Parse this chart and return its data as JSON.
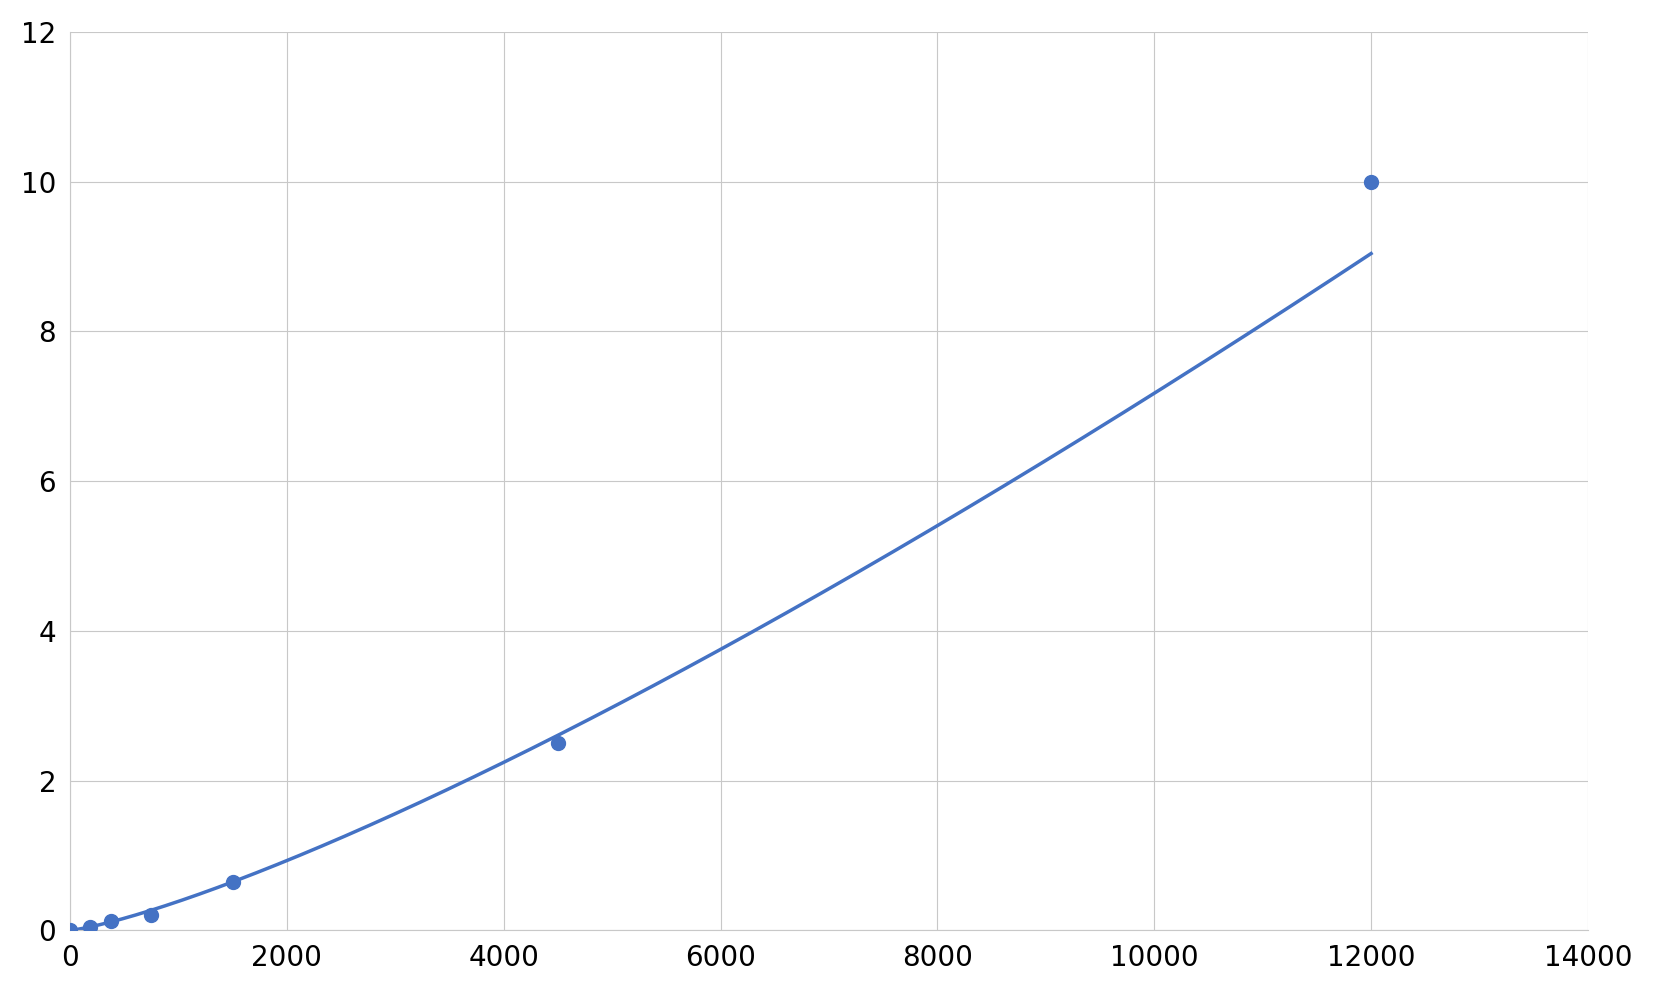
{
  "x_points": [
    0,
    188,
    375,
    750,
    1500,
    4500,
    12000
  ],
  "y_points": [
    0.0,
    0.05,
    0.13,
    0.2,
    0.65,
    2.5,
    10.0
  ],
  "line_color": "#4472C4",
  "marker_color": "#4472C4",
  "marker_size": 10,
  "line_width": 2.5,
  "xlim": [
    0,
    14000
  ],
  "ylim": [
    0,
    12
  ],
  "xticks": [
    0,
    2000,
    4000,
    6000,
    8000,
    10000,
    12000,
    14000
  ],
  "yticks": [
    0,
    2,
    4,
    6,
    8,
    10,
    12
  ],
  "grid_color": "#C8C8C8",
  "background_color": "#FFFFFF",
  "fig_background": "#FFFFFF"
}
